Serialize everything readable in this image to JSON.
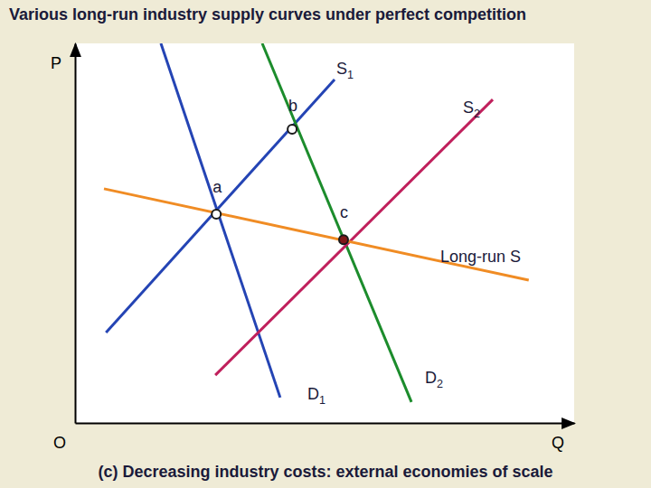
{
  "chart_data": {
    "type": "line",
    "title": "Various long-run industry supply curves under perfect competition",
    "subtitle": "(c) Decreasing industry costs: external economies of scale",
    "x_label": "Q",
    "y_label": "P",
    "origin_label": "O",
    "xlim": [
      0,
      100
    ],
    "ylim": [
      0,
      100
    ],
    "tick_labels": false,
    "grid": false,
    "series": [
      {
        "name": "D1",
        "color": "#2444b4",
        "x": [
          17.2,
          41.1
        ],
        "values": [
          100,
          6.7
        ]
      },
      {
        "name": "S1",
        "color": "#2444b4",
        "x": [
          6.2,
          52.0
        ],
        "values": [
          23.8,
          90.5
        ]
      },
      {
        "name": "D2",
        "color": "#1c8c2c",
        "x": [
          37.5,
          67.4
        ],
        "values": [
          100,
          5.5
        ]
      },
      {
        "name": "S2",
        "color": "#c0205c",
        "x": [
          28.1,
          83.7
        ],
        "values": [
          12.6,
          85.2
        ]
      },
      {
        "name": "Long-run S",
        "color": "#f08c24",
        "x": [
          5.8,
          90.9
        ],
        "values": [
          61.7,
          37.6
        ]
      }
    ],
    "points": [
      {
        "label": "a",
        "x": 28.3,
        "y": 55.0,
        "marker": "hollow"
      },
      {
        "label": "b",
        "x": 43.5,
        "y": 77.4,
        "marker": "hollow"
      },
      {
        "label": "c",
        "x": 53.8,
        "y": 48.3,
        "marker": "filled"
      }
    ]
  }
}
